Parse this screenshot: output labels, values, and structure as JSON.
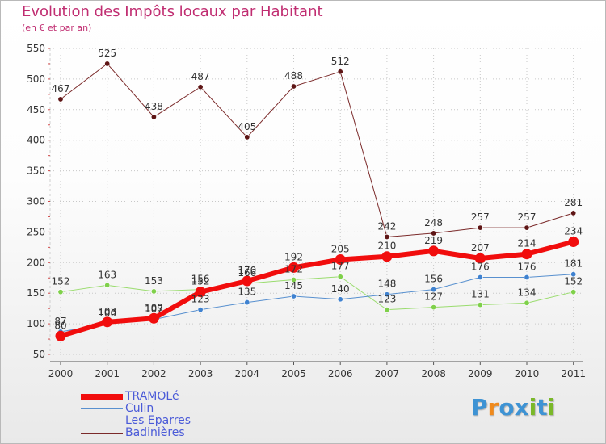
{
  "title": "Evolution des Impôts locaux par Habitant",
  "subtitle": "(en € et par an)",
  "logo": {
    "letters": [
      "P",
      "r",
      "o",
      "x",
      "i",
      "t",
      "i"
    ],
    "colors": [
      "#3e93d4",
      "#f08a1c",
      "#3e93d4",
      "#3e93d4",
      "#7ab829",
      "#3e93d4",
      "#7ab829"
    ]
  },
  "chart_data": {
    "type": "line",
    "title": "Evolution des Impôts locaux par Habitant",
    "subtitle": "(en € et par an)",
    "xlabel": "",
    "ylabel": "",
    "ylim": [
      50,
      550
    ],
    "yticks": [
      50,
      100,
      150,
      200,
      250,
      300,
      350,
      400,
      450,
      500,
      550
    ],
    "categories": [
      "2000",
      "2001",
      "2002",
      "2003",
      "2004",
      "2005",
      "2006",
      "2007",
      "2008",
      "2009",
      "2010",
      "2011"
    ],
    "series": [
      {
        "name": "Badinières",
        "color": "#7b2a2a",
        "marker": "#5e1515",
        "width": 1,
        "values": [
          467,
          525,
          438,
          487,
          405,
          488,
          512,
          242,
          248,
          257,
          257,
          281
        ]
      },
      {
        "name": "Les Eparres",
        "color": "#9adc6e",
        "marker": "#7fd04a",
        "width": 1,
        "values": [
          152,
          163,
          153,
          156,
          166,
          172,
          177,
          123,
          127,
          131,
          134,
          152
        ]
      },
      {
        "name": "Culin",
        "color": "#5890cf",
        "marker": "#3f82d0",
        "width": 1,
        "values": [
          87,
          100,
          107,
          123,
          135,
          145,
          140,
          148,
          156,
          176,
          176,
          181
        ]
      },
      {
        "name": "TRAMOLé",
        "color": "#f10d0d",
        "marker": "#f10d0d",
        "width": 6,
        "values": [
          80,
          103,
          109,
          152,
          170,
          192,
          205,
          210,
          219,
          207,
          214,
          234
        ]
      }
    ],
    "legend": [
      {
        "name": "TRAMOLé",
        "color": "#f10d0d",
        "width": 7
      },
      {
        "name": "Culin",
        "color": "#5890cf",
        "width": 1
      },
      {
        "name": "Les Eparres",
        "color": "#9adc6e",
        "width": 1
      },
      {
        "name": "Badinières",
        "color": "#7b2a2a",
        "width": 1
      }
    ],
    "legend_position": "bottom-left"
  }
}
